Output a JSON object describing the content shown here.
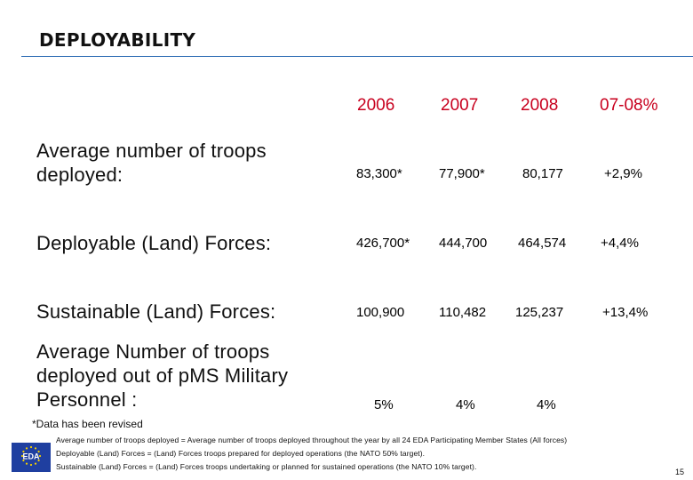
{
  "title": "DEPLOYABILITY",
  "columns": [
    "2006",
    "2007",
    "2008",
    "07-08%"
  ],
  "rows": [
    {
      "label_lines": [
        "Average number of troops",
        "deployed:"
      ],
      "values": [
        "83,300*",
        "77,900*",
        "80,177",
        "+2,9%"
      ]
    },
    {
      "label_lines": [
        "Deployable (Land) Forces:"
      ],
      "values": [
        "426,700*",
        "444,700",
        "464,574",
        "+4,4%"
      ]
    },
    {
      "label_lines": [
        "Sustainable (Land) Forces:"
      ],
      "values": [
        "100,900",
        "110,482",
        "125,237",
        "+13,4%"
      ]
    },
    {
      "label_lines": [
        "Average Number of troops",
        "deployed out of pMS Military",
        "Personnel :"
      ],
      "values": [
        "5%",
        "4%",
        "4%"
      ]
    }
  ],
  "footnote": "*Data has been revised",
  "definitions": [
    "Average number of troops deployed = Average number of troops deployed throughout the year by all 24 EDA Participating Member States (All forces)",
    "Deployable (Land) Forces = (Land) Forces troops prepared for deployed operations (the NATO 50% target).",
    "Sustainable (Land) Forces = (Land) Forces troops undertaking or planned for sustained operations (the NATO 10% target)."
  ],
  "logo": {
    "text": "EDA",
    "icon": "eda-eu-flag-logo",
    "flag_color": "#1f3fa0",
    "star_color": "#f5d000"
  },
  "page_number": "15",
  "colors": {
    "rule": "#2e6db4",
    "year_header": "#c8001e"
  }
}
